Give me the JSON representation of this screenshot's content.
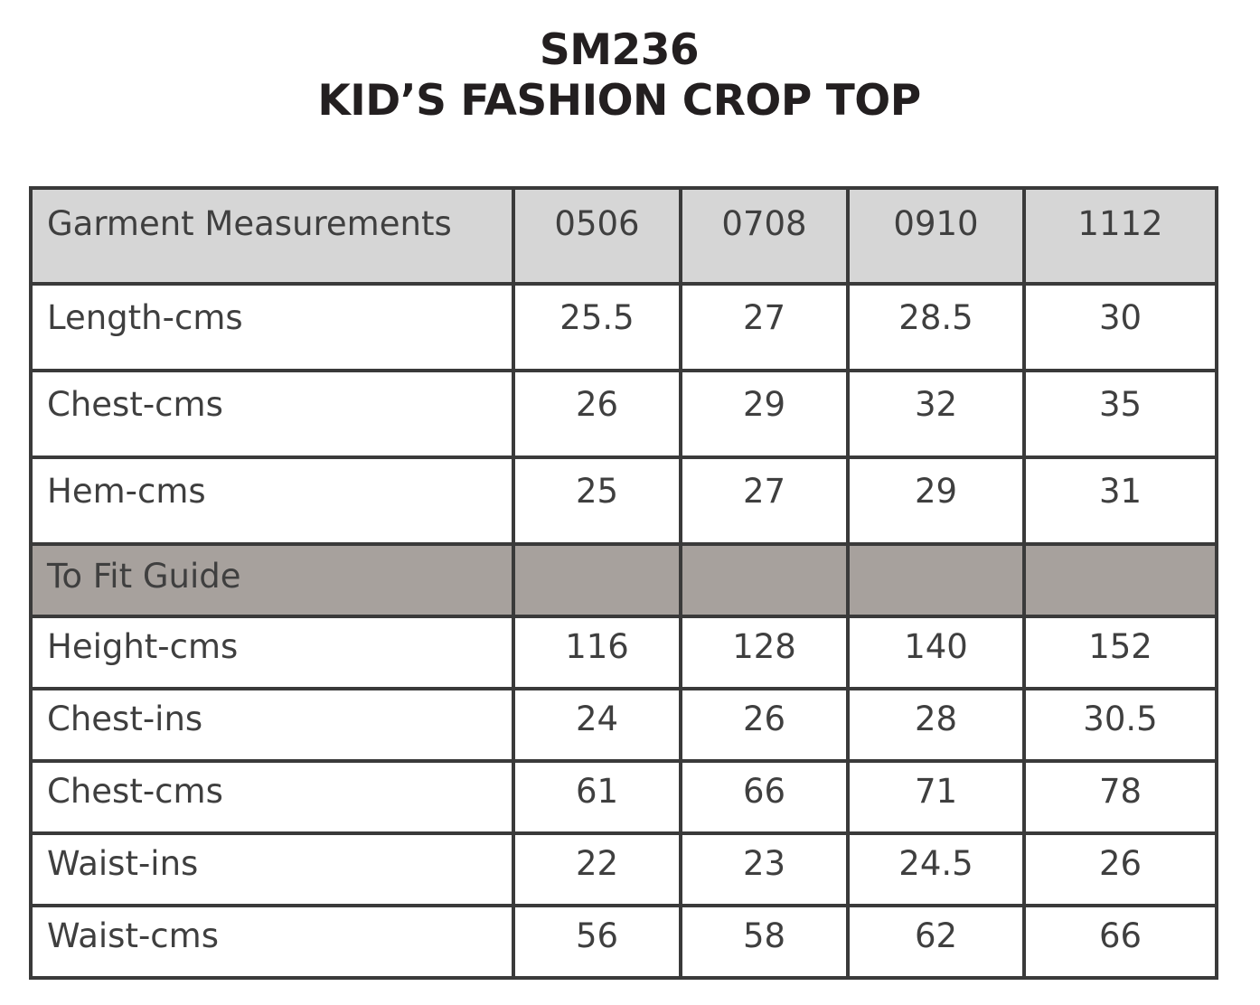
{
  "document": {
    "title_line1": "SM236",
    "title_line2": "KID’S FASHION CROP TOP"
  },
  "table": {
    "header_label": "Garment Measurements",
    "sizes": [
      "0506",
      "0708",
      "0910",
      "1112"
    ],
    "garment_rows": [
      {
        "label": "Length-cms",
        "values": [
          "25.5",
          "27",
          "28.5",
          "30"
        ]
      },
      {
        "label": "Chest-cms",
        "values": [
          "26",
          "29",
          "32",
          "35"
        ]
      },
      {
        "label": "Hem-cms",
        "values": [
          "25",
          "27",
          "29",
          "31"
        ]
      }
    ],
    "section_label": "To Fit Guide",
    "fit_rows": [
      {
        "label": "Height-cms",
        "values": [
          "116",
          "128",
          "140",
          "152"
        ]
      },
      {
        "label": "Chest-ins",
        "values": [
          "24",
          "26",
          "28",
          "30.5"
        ]
      },
      {
        "label": "Chest-cms",
        "values": [
          "61",
          "66",
          "71",
          "78"
        ]
      },
      {
        "label": "Waist-ins",
        "values": [
          "22",
          "23",
          "24.5",
          "26"
        ]
      },
      {
        "label": "Waist-cms",
        "values": [
          "56",
          "58",
          "62",
          "66"
        ]
      }
    ]
  },
  "colors": {
    "header_bg": "#d6d6d6",
    "section_bg": "#a7a19d",
    "border": "#3a3a3a",
    "text": "#3f3f3f",
    "title": "#231f20"
  }
}
